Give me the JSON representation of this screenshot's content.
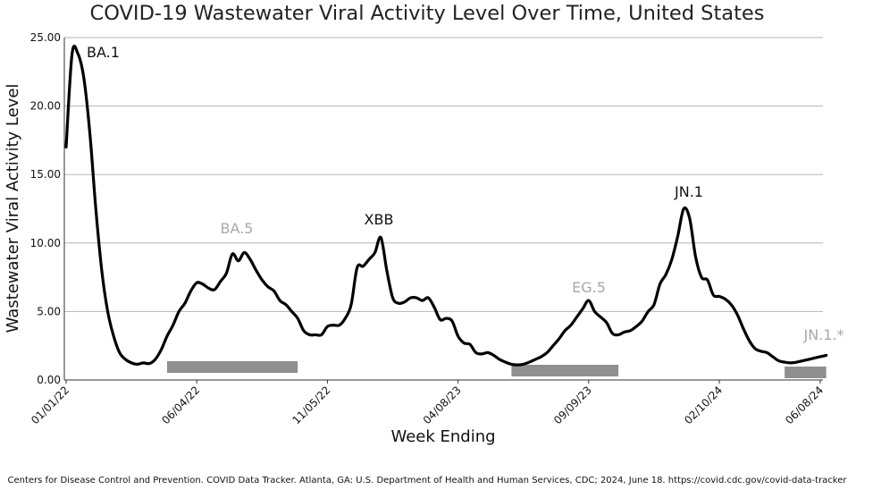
{
  "chart_data": {
    "type": "line",
    "title": "COVID-19 Wastewater Viral Activity Level Over Time, United States",
    "xlabel": "Week Ending",
    "ylabel": "Wastewater Viral Activity Level",
    "ylim": [
      0,
      25
    ],
    "y_ticks": [
      "0.00",
      "5.00",
      "10.00",
      "15.00",
      "20.00",
      "25.00"
    ],
    "x_ticks": [
      "01/01/22",
      "06/04/22",
      "11/05/22",
      "04/08/23",
      "09/09/23",
      "02/10/24",
      "06/08/24"
    ],
    "grid": "horizontal",
    "series": [
      {
        "color": "#000000",
        "points": [
          [
            "01/01/22",
            17.0
          ],
          [
            "01/08/22",
            23.8
          ],
          [
            "01/15/22",
            23.8
          ],
          [
            "01/22/22",
            22.0
          ],
          [
            "01/29/22",
            18.0
          ],
          [
            "02/05/22",
            12.5
          ],
          [
            "02/12/22",
            8.0
          ],
          [
            "02/19/22",
            5.0
          ],
          [
            "02/26/22",
            3.2
          ],
          [
            "03/05/22",
            2.0
          ],
          [
            "03/12/22",
            1.5
          ],
          [
            "03/19/22",
            1.25
          ],
          [
            "03/26/22",
            1.15
          ],
          [
            "04/02/22",
            1.25
          ],
          [
            "04/09/22",
            1.2
          ],
          [
            "04/16/22",
            1.5
          ],
          [
            "04/23/22",
            2.2
          ],
          [
            "04/30/22",
            3.2
          ],
          [
            "05/07/22",
            4.0
          ],
          [
            "05/14/22",
            5.0
          ],
          [
            "05/21/22",
            5.6
          ],
          [
            "05/28/22",
            6.5
          ],
          [
            "06/04/22",
            7.1
          ],
          [
            "06/11/22",
            7.0
          ],
          [
            "06/18/22",
            6.7
          ],
          [
            "06/25/22",
            6.6
          ],
          [
            "07/02/22",
            7.2
          ],
          [
            "07/09/22",
            7.8
          ],
          [
            "07/16/22",
            9.2
          ],
          [
            "07/23/22",
            8.7
          ],
          [
            "07/30/22",
            9.3
          ],
          [
            "08/06/22",
            8.8
          ],
          [
            "08/13/22",
            8.0
          ],
          [
            "08/20/22",
            7.3
          ],
          [
            "08/27/22",
            6.8
          ],
          [
            "09/03/22",
            6.5
          ],
          [
            "09/10/22",
            5.8
          ],
          [
            "09/17/22",
            5.5
          ],
          [
            "09/24/22",
            5.0
          ],
          [
            "10/01/22",
            4.5
          ],
          [
            "10/08/22",
            3.6
          ],
          [
            "10/15/22",
            3.3
          ],
          [
            "10/22/22",
            3.3
          ],
          [
            "10/29/22",
            3.3
          ],
          [
            "11/05/22",
            3.9
          ],
          [
            "11/12/22",
            4.0
          ],
          [
            "11/19/22",
            4.0
          ],
          [
            "11/26/22",
            4.5
          ],
          [
            "12/03/22",
            5.5
          ],
          [
            "12/10/22",
            8.2
          ],
          [
            "12/17/22",
            8.3
          ],
          [
            "12/24/22",
            8.8
          ],
          [
            "12/31/22",
            9.3
          ],
          [
            "01/07/23",
            10.4
          ],
          [
            "01/14/23",
            8.0
          ],
          [
            "01/21/23",
            6.0
          ],
          [
            "01/28/23",
            5.6
          ],
          [
            "02/04/23",
            5.7
          ],
          [
            "02/11/23",
            6.0
          ],
          [
            "02/18/23",
            6.0
          ],
          [
            "02/25/23",
            5.8
          ],
          [
            "03/04/23",
            6.0
          ],
          [
            "03/11/23",
            5.3
          ],
          [
            "03/18/23",
            4.4
          ],
          [
            "03/25/23",
            4.5
          ],
          [
            "04/01/23",
            4.3
          ],
          [
            "04/08/23",
            3.2
          ],
          [
            "04/15/23",
            2.7
          ],
          [
            "04/22/23",
            2.6
          ],
          [
            "04/29/23",
            2.0
          ],
          [
            "05/06/23",
            1.9
          ],
          [
            "05/13/23",
            2.0
          ],
          [
            "05/20/23",
            1.8
          ],
          [
            "05/27/23",
            1.5
          ],
          [
            "06/03/23",
            1.3
          ],
          [
            "06/10/23",
            1.15
          ],
          [
            "06/17/23",
            1.1
          ],
          [
            "06/24/23",
            1.15
          ],
          [
            "07/01/23",
            1.3
          ],
          [
            "07/08/23",
            1.5
          ],
          [
            "07/15/23",
            1.7
          ],
          [
            "07/22/23",
            2.0
          ],
          [
            "07/29/23",
            2.5
          ],
          [
            "08/05/23",
            3.0
          ],
          [
            "08/12/23",
            3.6
          ],
          [
            "08/19/23",
            4.0
          ],
          [
            "08/26/23",
            4.6
          ],
          [
            "09/02/23",
            5.2
          ],
          [
            "09/09/23",
            5.8
          ],
          [
            "09/16/23",
            5.0
          ],
          [
            "09/23/23",
            4.6
          ],
          [
            "09/30/23",
            4.2
          ],
          [
            "10/07/23",
            3.4
          ],
          [
            "10/14/23",
            3.3
          ],
          [
            "10/21/23",
            3.5
          ],
          [
            "10/28/23",
            3.6
          ],
          [
            "11/04/23",
            3.9
          ],
          [
            "11/11/23",
            4.3
          ],
          [
            "11/18/23",
            5.0
          ],
          [
            "11/25/23",
            5.5
          ],
          [
            "12/02/23",
            7.0
          ],
          [
            "12/09/23",
            7.7
          ],
          [
            "12/16/23",
            8.8
          ],
          [
            "12/23/23",
            10.5
          ],
          [
            "12/30/23",
            12.5
          ],
          [
            "01/06/24",
            11.8
          ],
          [
            "01/13/24",
            9.0
          ],
          [
            "01/20/24",
            7.5
          ],
          [
            "01/27/24",
            7.3
          ],
          [
            "02/03/24",
            6.2
          ],
          [
            "02/10/24",
            6.1
          ],
          [
            "02/17/24",
            5.9
          ],
          [
            "02/24/24",
            5.5
          ],
          [
            "03/02/24",
            4.8
          ],
          [
            "03/09/24",
            3.8
          ],
          [
            "03/16/24",
            2.9
          ],
          [
            "03/23/24",
            2.3
          ],
          [
            "03/30/24",
            2.1
          ],
          [
            "04/06/24",
            2.0
          ],
          [
            "04/13/24",
            1.7
          ],
          [
            "04/20/24",
            1.4
          ],
          [
            "04/27/24",
            1.3
          ],
          [
            "05/04/24",
            1.25
          ],
          [
            "05/11/24",
            1.3
          ],
          [
            "05/18/24",
            1.4
          ],
          [
            "05/25/24",
            1.5
          ],
          [
            "06/01/24",
            1.6
          ],
          [
            "06/08/24",
            1.7
          ],
          [
            "06/15/24",
            1.8
          ]
        ]
      }
    ],
    "annotations": [
      {
        "text": "BA.1",
        "color": "#111111"
      },
      {
        "text": "BA.5",
        "color": "#a8a8a8"
      },
      {
        "text": "XBB",
        "color": "#111111"
      },
      {
        "text": "EG.5",
        "color": "#a8a8a8"
      },
      {
        "text": "JN.1",
        "color": "#111111"
      },
      {
        "text": "JN.1.*",
        "color": "#a8a8a8"
      }
    ],
    "season_bars": [
      {
        "start": "04/30/22",
        "end": "10/01/22"
      },
      {
        "start": "06/10/23",
        "end": "10/14/23"
      },
      {
        "start": "04/27/24",
        "end": "06/15/24"
      }
    ],
    "source": "Centers for Disease Control and Prevention. COVID Data Tracker. Atlanta, GA: U.S. Department of Health and Human Services, CDC; 2024, June 18. https://covid.cdc.gov/covid-data-tracker"
  },
  "colors": {
    "line": "#000000",
    "grid": "#b5b5b5",
    "season_bar": "#8f8f8f",
    "dark_label": "#111111",
    "light_label": "#a8a8a8"
  }
}
